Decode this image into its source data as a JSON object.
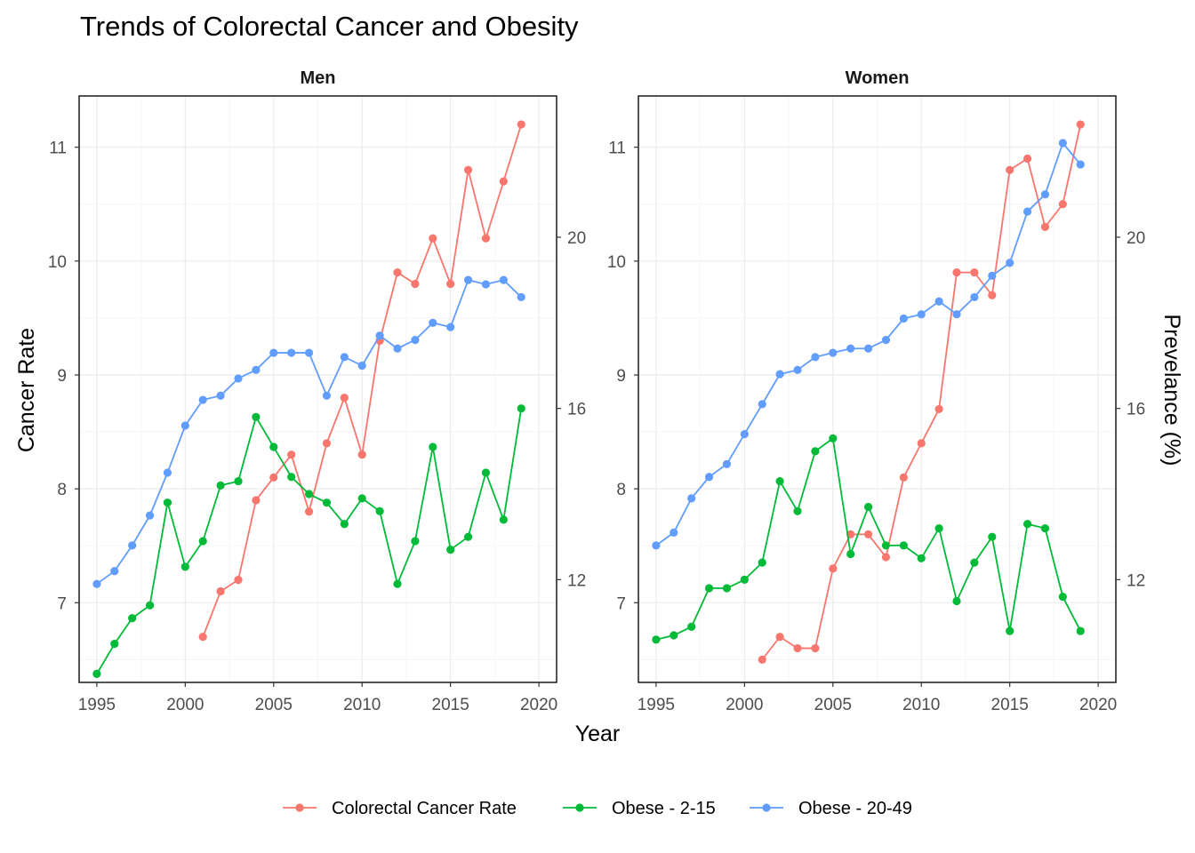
{
  "chart_data": {
    "type": "line",
    "title": "Trends of Colorectal Cancer and Obesity",
    "xlabel": "Year",
    "ylabel": "Cancer Rate",
    "ylabel_right": "Prevelance (%)",
    "xlim": [
      1994,
      2021
    ],
    "ylim": [
      6.3,
      11.45
    ],
    "ylim_right": [
      9.6,
      23.3
    ],
    "x_ticks": [
      1995,
      2000,
      2005,
      2010,
      2015,
      2020
    ],
    "y_ticks": [
      7,
      8,
      9,
      10,
      11
    ],
    "y_ticks_right": [
      12,
      16,
      20
    ],
    "grid": true,
    "legend_position": "bottom",
    "colors": {
      "Colorectal Cancer Rate": "#F8766D",
      "Obese - 2-15": "#00BA38",
      "Obese - 20-49": "#619CFF"
    },
    "legend": [
      "Colorectal Cancer Rate",
      "Obese - 2-15",
      "Obese - 20-49"
    ],
    "panels": [
      {
        "name": "Men",
        "series": [
          {
            "name": "Colorectal Cancer Rate",
            "axis": "left",
            "x": [
              2001,
              2002,
              2003,
              2004,
              2005,
              2006,
              2007,
              2008,
              2009,
              2010,
              2011,
              2012,
              2013,
              2014,
              2015,
              2016,
              2017,
              2018,
              2019
            ],
            "values": [
              6.7,
              7.1,
              7.2,
              7.9,
              8.1,
              8.3,
              7.8,
              8.4,
              8.8,
              8.3,
              9.3,
              9.9,
              9.8,
              10.2,
              9.8,
              10.8,
              10.2,
              10.7,
              11.2
            ]
          },
          {
            "name": "Obese - 2-15",
            "axis": "right",
            "x": [
              1995,
              1996,
              1997,
              1998,
              1999,
              2000,
              2001,
              2002,
              2003,
              2004,
              2005,
              2006,
              2007,
              2008,
              2009,
              2010,
              2011,
              2012,
              2013,
              2014,
              2015,
              2016,
              2017,
              2018,
              2019
            ],
            "values": [
              9.8,
              10.5,
              11.1,
              11.4,
              13.8,
              12.3,
              12.9,
              14.2,
              14.3,
              15.8,
              15.1,
              14.4,
              14.0,
              13.8,
              13.3,
              13.9,
              13.6,
              11.9,
              12.9,
              15.1,
              12.7,
              13.0,
              14.5,
              13.4,
              16.0
            ]
          },
          {
            "name": "Obese - 20-49",
            "axis": "right",
            "x": [
              1995,
              1996,
              1997,
              1998,
              1999,
              2000,
              2001,
              2002,
              2003,
              2004,
              2005,
              2006,
              2007,
              2008,
              2009,
              2010,
              2011,
              2012,
              2013,
              2014,
              2015,
              2016,
              2017,
              2018,
              2019
            ],
            "values": [
              11.9,
              12.2,
              12.8,
              13.5,
              14.5,
              15.6,
              16.2,
              16.3,
              16.7,
              16.9,
              17.3,
              17.3,
              17.3,
              16.3,
              17.2,
              17.0,
              17.7,
              17.4,
              17.6,
              18.0,
              17.9,
              19.0,
              18.9,
              19.0,
              18.6
            ]
          }
        ]
      },
      {
        "name": "Women",
        "series": [
          {
            "name": "Colorectal Cancer Rate",
            "axis": "left",
            "x": [
              2001,
              2002,
              2003,
              2004,
              2005,
              2006,
              2007,
              2008,
              2009,
              2010,
              2011,
              2012,
              2013,
              2014,
              2015,
              2016,
              2017,
              2018,
              2019
            ],
            "values": [
              6.5,
              6.7,
              6.6,
              6.6,
              7.3,
              7.6,
              7.6,
              7.4,
              8.1,
              8.4,
              8.7,
              9.9,
              9.9,
              9.7,
              10.8,
              10.9,
              10.3,
              10.5,
              11.2
            ]
          },
          {
            "name": "Obese - 2-15",
            "axis": "right",
            "x": [
              1995,
              1996,
              1997,
              1998,
              1999,
              2000,
              2001,
              2002,
              2003,
              2004,
              2005,
              2006,
              2007,
              2008,
              2009,
              2010,
              2011,
              2012,
              2013,
              2014,
              2015,
              2016,
              2017,
              2018,
              2019
            ],
            "values": [
              10.6,
              10.7,
              10.9,
              11.8,
              11.8,
              12.0,
              12.4,
              14.3,
              13.6,
              15.0,
              15.3,
              12.6,
              13.7,
              12.8,
              12.8,
              12.5,
              13.2,
              11.5,
              12.4,
              13.0,
              10.8,
              13.3,
              13.2,
              11.6,
              10.8
            ]
          },
          {
            "name": "Obese - 20-49",
            "axis": "right",
            "x": [
              1995,
              1996,
              1997,
              1998,
              1999,
              2000,
              2001,
              2002,
              2003,
              2004,
              2005,
              2006,
              2007,
              2008,
              2009,
              2010,
              2011,
              2012,
              2013,
              2014,
              2015,
              2016,
              2017,
              2018,
              2019
            ],
            "values": [
              12.8,
              13.1,
              13.9,
              14.4,
              14.7,
              15.4,
              16.1,
              16.8,
              16.9,
              17.2,
              17.3,
              17.4,
              17.4,
              17.6,
              18.1,
              18.2,
              18.5,
              18.2,
              18.6,
              19.1,
              19.4,
              20.6,
              21.0,
              22.2,
              21.7
            ]
          }
        ]
      }
    ]
  }
}
